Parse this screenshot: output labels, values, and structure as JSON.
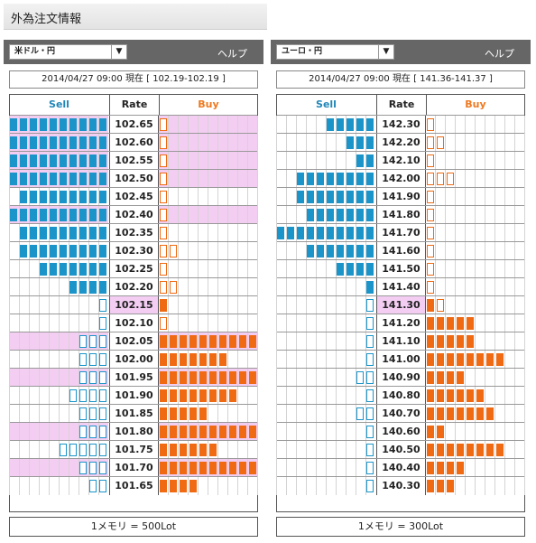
{
  "title": "外為注文情報",
  "panels": [
    {
      "pair": "米ドル・円",
      "help": "ヘルプ",
      "info": "2014/04/27  09:00 現在 [ 102.19-102.19 ]",
      "sell_header": "Sell",
      "rate_header": "Rate",
      "buy_header": "Buy",
      "footer": "1メモリ = 500Lot",
      "rows": [
        {
          "rate": "102.65",
          "sell": "F10",
          "buy": "O1",
          "hl": true
        },
        {
          "rate": "102.60",
          "sell": "F10",
          "buy": "O1",
          "hl": true
        },
        {
          "rate": "102.55",
          "sell": "F10",
          "buy": "O1",
          "hl": true
        },
        {
          "rate": "102.50",
          "sell": "F10",
          "buy": "O1",
          "hl": true
        },
        {
          "rate": "102.45",
          "sell": "F9",
          "buy": "O1"
        },
        {
          "rate": "102.40",
          "sell": "F10",
          "buy": "O1",
          "hl": true
        },
        {
          "rate": "102.35",
          "sell": "F9",
          "buy": "O1"
        },
        {
          "rate": "102.30",
          "sell": "F9",
          "buy": "O2"
        },
        {
          "rate": "102.25",
          "sell": "F7",
          "buy": "O1"
        },
        {
          "rate": "102.20",
          "sell": "F4",
          "buy": "O2"
        },
        {
          "rate": "102.15",
          "sell": "O1",
          "buy": "F1",
          "current": true
        },
        {
          "rate": "102.10",
          "sell": "O1",
          "buy": "O1"
        },
        {
          "rate": "102.05",
          "sell": "O3",
          "buy": "F10",
          "hl": true
        },
        {
          "rate": "102.00",
          "sell": "O3",
          "buy": "F7"
        },
        {
          "rate": "101.95",
          "sell": "O3",
          "buy": "F10",
          "hl": true
        },
        {
          "rate": "101.90",
          "sell": "O4",
          "buy": "F8"
        },
        {
          "rate": "101.85",
          "sell": "O3",
          "buy": "F5"
        },
        {
          "rate": "101.80",
          "sell": "O3",
          "buy": "F10",
          "hl": true
        },
        {
          "rate": "101.75",
          "sell": "O5",
          "buy": "F6"
        },
        {
          "rate": "101.70",
          "sell": "O3",
          "buy": "F10",
          "hl": true
        },
        {
          "rate": "101.65",
          "sell": "O2",
          "buy": "F4"
        }
      ]
    },
    {
      "pair": "ユーロ・円",
      "help": "ヘルプ",
      "info": "2014/04/27  09:00 現在 [ 141.36-141.37 ]",
      "sell_header": "Sell",
      "rate_header": "Rate",
      "buy_header": "Buy",
      "footer": "1メモリ = 300Lot",
      "rows": [
        {
          "rate": "142.30",
          "sell": "F5",
          "buy": "O1"
        },
        {
          "rate": "142.20",
          "sell": "F3",
          "buy": "O2"
        },
        {
          "rate": "142.10",
          "sell": "F2",
          "buy": "O1"
        },
        {
          "rate": "142.00",
          "sell": "F8",
          "buy": "O3"
        },
        {
          "rate": "141.90",
          "sell": "F8",
          "buy": "O1"
        },
        {
          "rate": "141.80",
          "sell": "F7",
          "buy": "O1"
        },
        {
          "rate": "141.70",
          "sell": "F10",
          "buy": "O1"
        },
        {
          "rate": "141.60",
          "sell": "F7",
          "buy": "O1"
        },
        {
          "rate": "141.50",
          "sell": "F4",
          "buy": "O1"
        },
        {
          "rate": "141.40",
          "sell": "F1",
          "buy": "O1"
        },
        {
          "rate": "141.30",
          "sell": "O1",
          "buy": "F1O1",
          "current": true
        },
        {
          "rate": "141.20",
          "sell": "O1",
          "buy": "F5"
        },
        {
          "rate": "141.10",
          "sell": "O1",
          "buy": "F5"
        },
        {
          "rate": "141.00",
          "sell": "O1",
          "buy": "F8"
        },
        {
          "rate": "140.90",
          "sell": "O2",
          "buy": "F4"
        },
        {
          "rate": "140.80",
          "sell": "O1",
          "buy": "F6"
        },
        {
          "rate": "140.70",
          "sell": "O2",
          "buy": "F7"
        },
        {
          "rate": "140.60",
          "sell": "O1",
          "buy": "F2"
        },
        {
          "rate": "140.50",
          "sell": "O1",
          "buy": "F8"
        },
        {
          "rate": "140.40",
          "sell": "O1",
          "buy": "F4"
        },
        {
          "rate": "140.30",
          "sell": "O1",
          "buy": "F3"
        }
      ]
    }
  ]
}
